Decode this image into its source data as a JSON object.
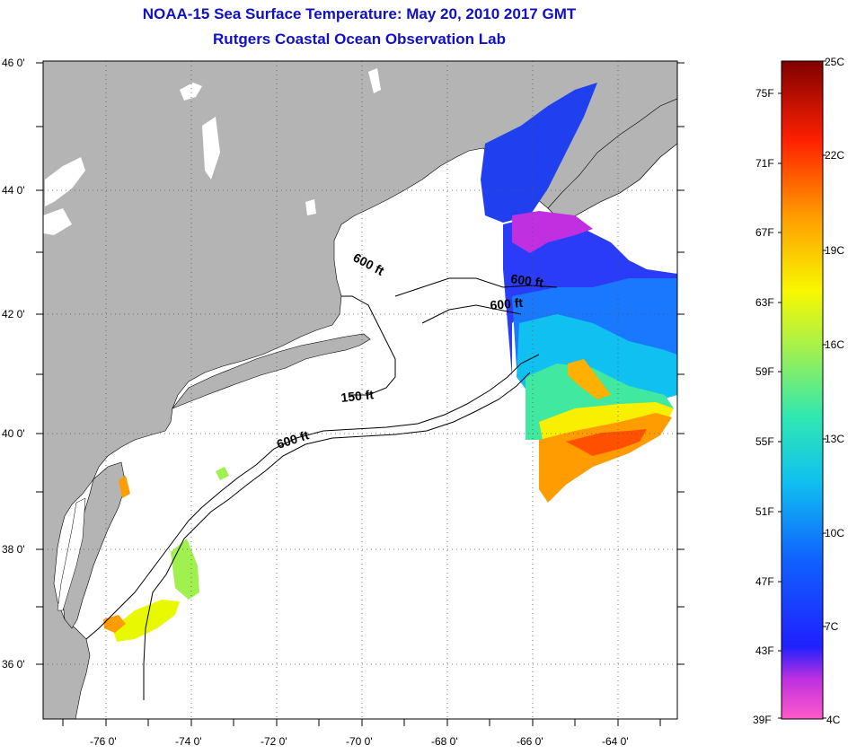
{
  "header": {
    "title": "NOAA-15 Sea Surface Temperature:  May 20, 2010 2017 GMT",
    "subtitle": "Rutgers Coastal Ocean Observation Lab"
  },
  "axes": {
    "lat_labels": [
      "46 0'",
      "44 0'",
      "42 0'",
      "40 0'",
      "38 0'",
      "36 0'"
    ],
    "lon_labels": [
      "-76 0'",
      "-74 0'",
      "-72 0'",
      "-70 0'",
      "-68 0'",
      "-66 0'",
      "-64 0'"
    ]
  },
  "contours": {
    "label_600_a": "600 ft",
    "label_600_b": "600 ft",
    "label_600_c": "600 ft",
    "label_150": "150 ft",
    "label_600_d": "600 ft"
  },
  "colorbar": {
    "fahrenheit": [
      "75F",
      "71F",
      "67F",
      "63F",
      "59F",
      "55F",
      "51F",
      "47F",
      "43F",
      "39F"
    ],
    "celsius": [
      "25C",
      "22C",
      "19C",
      "16C",
      "13C",
      "10C",
      "7C",
      "4C"
    ]
  },
  "colors": {
    "land": "#b4b4b4",
    "water": "#ffffff",
    "title": "#1010c8"
  }
}
